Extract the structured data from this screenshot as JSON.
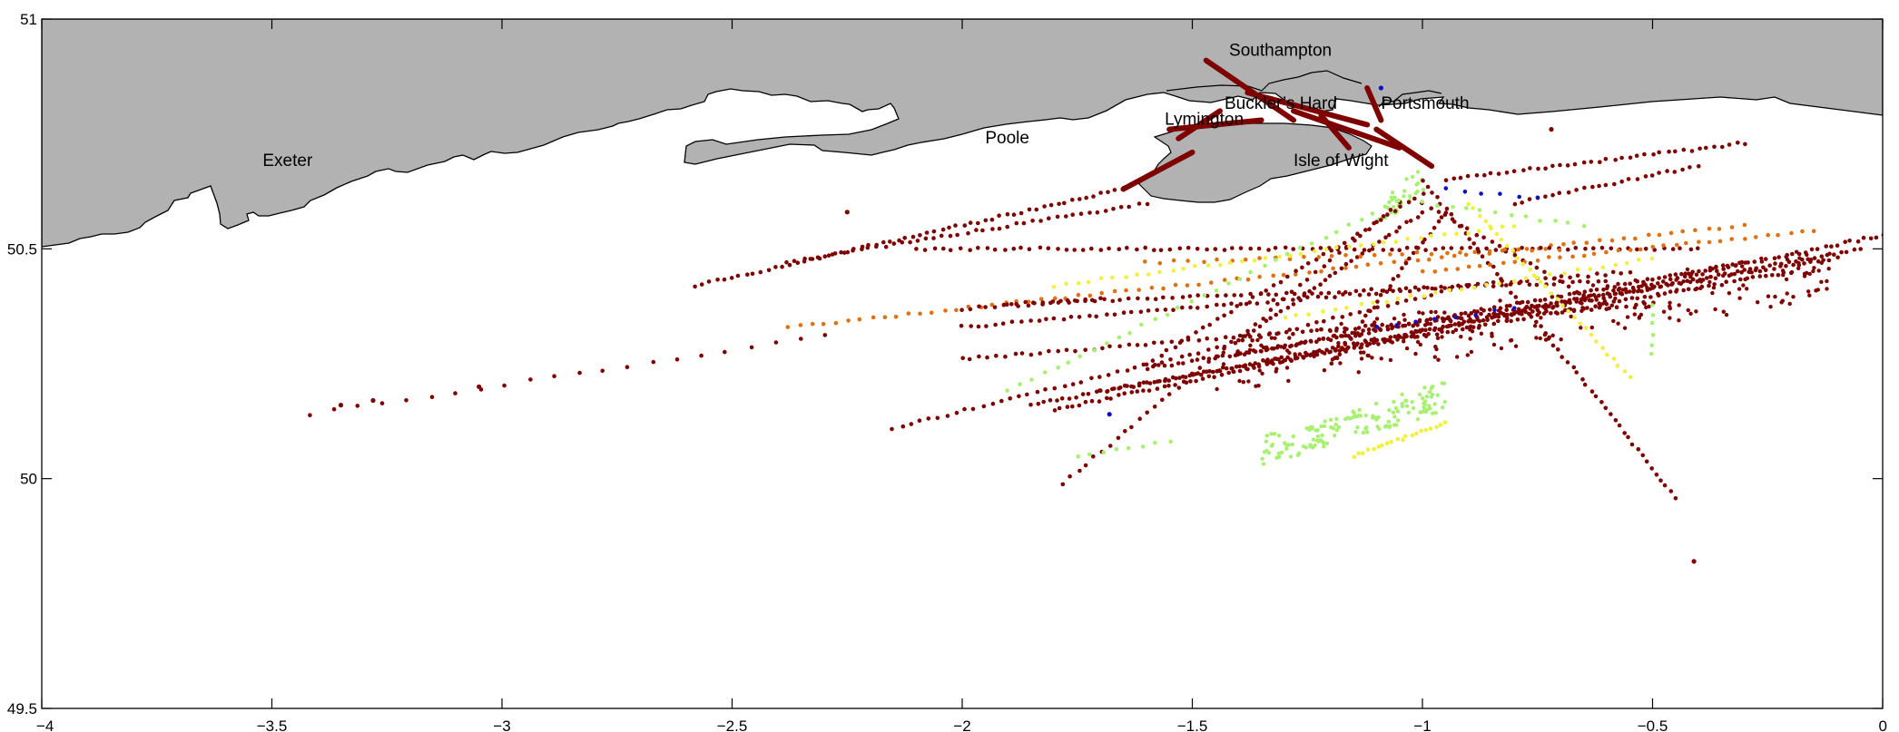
{
  "chart_data": {
    "type": "scatter",
    "title": "",
    "xlabel": "",
    "ylabel": "",
    "xlim": [
      -4,
      0
    ],
    "ylim": [
      49.5,
      51
    ],
    "x_ticks": [
      {
        "value": -4,
        "label": "−4"
      },
      {
        "value": -3.5,
        "label": "−3.5"
      },
      {
        "value": -3,
        "label": "−3"
      },
      {
        "value": -2.5,
        "label": "−2.5"
      },
      {
        "value": -2,
        "label": "−2"
      },
      {
        "value": -1.5,
        "label": "−1.5"
      },
      {
        "value": -1,
        "label": "−1"
      },
      {
        "value": -0.5,
        "label": "−0.5"
      },
      {
        "value": 0,
        "label": "0"
      }
    ],
    "y_ticks": [
      {
        "value": 49.5,
        "label": "49.5"
      },
      {
        "value": 50,
        "label": "50"
      },
      {
        "value": 50.5,
        "label": "50.5"
      },
      {
        "value": 51,
        "label": "51"
      }
    ],
    "grid": false,
    "land_color": "#b2b2b2",
    "coast_color": "#000000",
    "place_labels": [
      {
        "name": "Southampton",
        "lon": -1.42,
        "lat": 50.92
      },
      {
        "name": "Buckler’s Hard",
        "lon": -1.43,
        "lat": 50.805
      },
      {
        "name": "Portsmouth",
        "lon": -1.09,
        "lat": 50.805
      },
      {
        "name": "Lymington",
        "lon": -1.56,
        "lat": 50.77
      },
      {
        "name": "Poole",
        "lon": -1.95,
        "lat": 50.73
      },
      {
        "name": "Isle of Wight",
        "lon": -1.28,
        "lat": 50.68
      },
      {
        "name": "Exeter",
        "lon": -3.52,
        "lat": 50.68
      }
    ],
    "colors": {
      "darkred": "#7f0000",
      "orange": "#e07010",
      "yellow": "#f0f040",
      "lightgreen": "#a8f070",
      "blue": "#1010c0"
    },
    "tracks": [
      {
        "color": "darkred",
        "from": [
          -1.65,
          50.63
        ],
        "to": [
          -2.58,
          50.42
        ],
        "n": 60
      },
      {
        "color": "darkred",
        "from": [
          -1.6,
          50.6
        ],
        "to": [
          -2.38,
          50.47
        ],
        "n": 45
      },
      {
        "color": "darkred",
        "from": [
          -2.3,
          50.31
        ],
        "to": [
          -3.42,
          50.14
        ],
        "n": 22
      },
      {
        "color": "orange",
        "from": [
          -0.3,
          50.55
        ],
        "to": [
          -2.38,
          50.33
        ],
        "n": 80
      },
      {
        "color": "darkred",
        "from": [
          -0.9,
          50.42
        ],
        "to": [
          -2.15,
          50.11
        ],
        "n": 65
      },
      {
        "color": "darkred",
        "from": [
          0,
          50.53
        ],
        "to": [
          -1.8,
          50.15
        ],
        "n": 130
      },
      {
        "color": "darkred",
        "from": [
          -0.05,
          50.5
        ],
        "to": [
          -1.85,
          50.16
        ],
        "n": 130
      },
      {
        "color": "darkred",
        "from": [
          -0.1,
          50.48
        ],
        "to": [
          -1.6,
          50.24
        ],
        "n": 110
      },
      {
        "color": "darkred",
        "from": [
          -0.2,
          50.45
        ],
        "to": [
          -1.7,
          50.19
        ],
        "n": 110
      },
      {
        "color": "darkred",
        "from": [
          -0.3,
          50.47
        ],
        "to": [
          -1.4,
          50.27
        ],
        "n": 90
      },
      {
        "color": "darkred",
        "from": [
          -0.4,
          50.5
        ],
        "to": [
          -2.1,
          50.5
        ],
        "n": 90
      },
      {
        "color": "darkred",
        "from": [
          -0.55,
          50.45
        ],
        "to": [
          -2.0,
          50.33
        ],
        "n": 80
      },
      {
        "color": "darkred",
        "from": [
          -0.6,
          50.43
        ],
        "to": [
          -1.9,
          50.38
        ],
        "n": 70
      },
      {
        "color": "darkred",
        "from": [
          -0.5,
          50.38
        ],
        "to": [
          -2.0,
          50.26
        ],
        "n": 80
      },
      {
        "color": "darkred",
        "from": [
          -1.0,
          50.65
        ],
        "to": [
          -0.45,
          49.96
        ],
        "n": 55
      },
      {
        "color": "darkred",
        "from": [
          -1.05,
          50.6
        ],
        "to": [
          -1.78,
          49.99
        ],
        "n": 45
      },
      {
        "color": "darkred",
        "from": [
          -1.0,
          50.62
        ],
        "to": [
          -1.6,
          50.25
        ],
        "n": 40
      },
      {
        "color": "darkred",
        "from": [
          -1.0,
          50.58
        ],
        "to": [
          -1.4,
          50.3
        ],
        "n": 35
      },
      {
        "color": "darkred",
        "from": [
          -0.95,
          50.58
        ],
        "to": [
          -1.2,
          50.25
        ],
        "n": 30
      },
      {
        "color": "darkred",
        "from": [
          -0.95,
          50.65
        ],
        "to": [
          -0.3,
          50.73
        ],
        "n": 40
      },
      {
        "color": "darkred",
        "from": [
          -0.8,
          50.6
        ],
        "to": [
          -0.4,
          50.68
        ],
        "n": 25
      },
      {
        "color": "darkred",
        "from": [
          -1.0,
          50.6
        ],
        "to": [
          -0.6,
          50.37
        ],
        "n": 25
      },
      {
        "color": "darkred",
        "from": [
          -1.7,
          50.39
        ],
        "to": [
          -2.0,
          50.37
        ],
        "n": 18
      },
      {
        "color": "orange",
        "from": [
          -0.15,
          50.54
        ],
        "to": [
          -1.0,
          50.45
        ],
        "n": 35
      },
      {
        "color": "orange",
        "from": [
          -0.7,
          50.5
        ],
        "to": [
          -1.6,
          50.47
        ],
        "n": 30
      },
      {
        "color": "yellow",
        "from": [
          -0.9,
          50.6
        ],
        "to": [
          -0.55,
          50.22
        ],
        "n": 30
      },
      {
        "color": "yellow",
        "from": [
          -0.8,
          50.55
        ],
        "to": [
          -1.8,
          50.42
        ],
        "n": 40
      },
      {
        "color": "yellow",
        "from": [
          -0.5,
          50.48
        ],
        "to": [
          -1.3,
          50.35
        ],
        "n": 30
      },
      {
        "color": "yellow",
        "from": [
          -1.15,
          50.05
        ],
        "to": [
          -0.95,
          50.12
        ],
        "n": 20
      },
      {
        "color": "lightgreen",
        "from": [
          -1.0,
          50.63
        ],
        "to": [
          -1.9,
          50.19
        ],
        "n": 35
      },
      {
        "color": "lightgreen",
        "from": [
          -1.0,
          50.6
        ],
        "to": [
          -0.65,
          50.55
        ],
        "n": 12
      },
      {
        "color": "lightgreen",
        "from": [
          -0.5,
          50.38
        ],
        "to": [
          -0.5,
          50.27
        ],
        "n": 6
      },
      {
        "color": "lightgreen",
        "from": [
          -1.75,
          50.05
        ],
        "to": [
          -1.55,
          50.08
        ],
        "n": 8
      },
      {
        "color": "blue",
        "from": [
          -0.8,
          50.37
        ],
        "to": [
          -1.1,
          50.33
        ],
        "n": 8
      },
      {
        "color": "blue",
        "from": [
          -0.95,
          50.63
        ],
        "to": [
          -0.75,
          50.61
        ],
        "n": 6
      }
    ],
    "patches": [
      {
        "color": "lightgreen",
        "lon": [
          -1.35,
          -0.95
        ],
        "lat": [
          50.06,
          50.18
        ],
        "n": 140
      },
      {
        "color": "darkred",
        "lon": [
          -1.45,
          -0.1
        ],
        "lat": [
          50.24,
          50.45
        ],
        "n": 260
      },
      {
        "color": "lightgreen",
        "lon": [
          -1.1,
          -1.0
        ],
        "lat": [
          50.56,
          50.66
        ],
        "n": 30
      }
    ],
    "single_points": [
      {
        "color": "darkred",
        "lon": -3.05,
        "lat": 50.2
      },
      {
        "color": "darkred",
        "lon": -3.28,
        "lat": 50.17
      },
      {
        "color": "darkred",
        "lon": -3.35,
        "lat": 50.16
      },
      {
        "color": "darkred",
        "lon": -0.41,
        "lat": 49.82
      },
      {
        "color": "darkred",
        "lon": -0.72,
        "lat": 50.76
      },
      {
        "color": "darkred",
        "lon": -2.25,
        "lat": 50.58
      },
      {
        "color": "blue",
        "lon": -1.68,
        "lat": 50.14
      },
      {
        "color": "blue",
        "lon": -1.09,
        "lat": 50.85
      }
    ],
    "port_routes": [
      {
        "lon": [
          -1.47,
          -1.28
        ],
        "lat": [
          50.91,
          50.78
        ]
      },
      {
        "lon": [
          -1.38,
          -1.12
        ],
        "lat": [
          50.84,
          50.77
        ]
      },
      {
        "lon": [
          -1.28,
          -1.05
        ],
        "lat": [
          50.8,
          50.72
        ]
      },
      {
        "lon": [
          -1.55,
          -1.35
        ],
        "lat": [
          50.76,
          50.78
        ]
      },
      {
        "lon": [
          -1.12,
          -1.09
        ],
        "lat": [
          50.85,
          50.78
        ]
      },
      {
        "lon": [
          -1.1,
          -0.98
        ],
        "lat": [
          50.76,
          50.68
        ]
      },
      {
        "lon": [
          -1.22,
          -1.16
        ],
        "lat": [
          50.79,
          50.72
        ]
      },
      {
        "lon": [
          -1.65,
          -1.5
        ],
        "lat": [
          50.63,
          50.71
        ]
      },
      {
        "lon": [
          -1.53,
          -1.44
        ],
        "lat": [
          50.74,
          50.8
        ]
      }
    ]
  }
}
